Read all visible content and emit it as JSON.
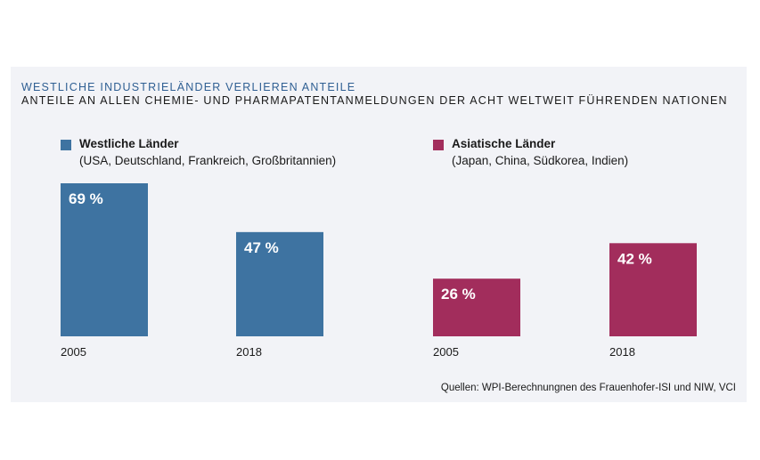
{
  "title": "WESTLICHE INDUSTRIELÄNDER VERLIEREN ANTEILE",
  "subtitle": "ANTEILE AN ALLEN CHEMIE- UND PHARMAPATENTANMELDUNGEN DER ACHT WELTWEIT FÜHRENDEN NATIONEN",
  "legend": [
    {
      "name": "Westliche Länder",
      "desc": "(USA, Deutschland, Frankreich, Großbritannien)",
      "color": "#3e73a1"
    },
    {
      "name": "Asiatische Länder",
      "desc": "(Japan, China, Südkorea, Indien)",
      "color": "#a22d5c"
    }
  ],
  "source": "Quellen: WPI-Berechnungnen des Frauenhofer-ISI und NIW, VCI",
  "chart_data": {
    "type": "bar",
    "unit": "%",
    "ylim": [
      0,
      100
    ],
    "grid": false,
    "series": [
      {
        "name": "Westliche Länder",
        "color": "#3e73a1",
        "categories": [
          "2005",
          "2018"
        ],
        "values": [
          69,
          47
        ],
        "labels": [
          "69 %",
          "47 %"
        ]
      },
      {
        "name": "Asiatische Länder",
        "color": "#a22d5c",
        "categories": [
          "2005",
          "2018"
        ],
        "values": [
          26,
          42
        ],
        "labels": [
          "26 %",
          "42 %"
        ]
      }
    ]
  }
}
